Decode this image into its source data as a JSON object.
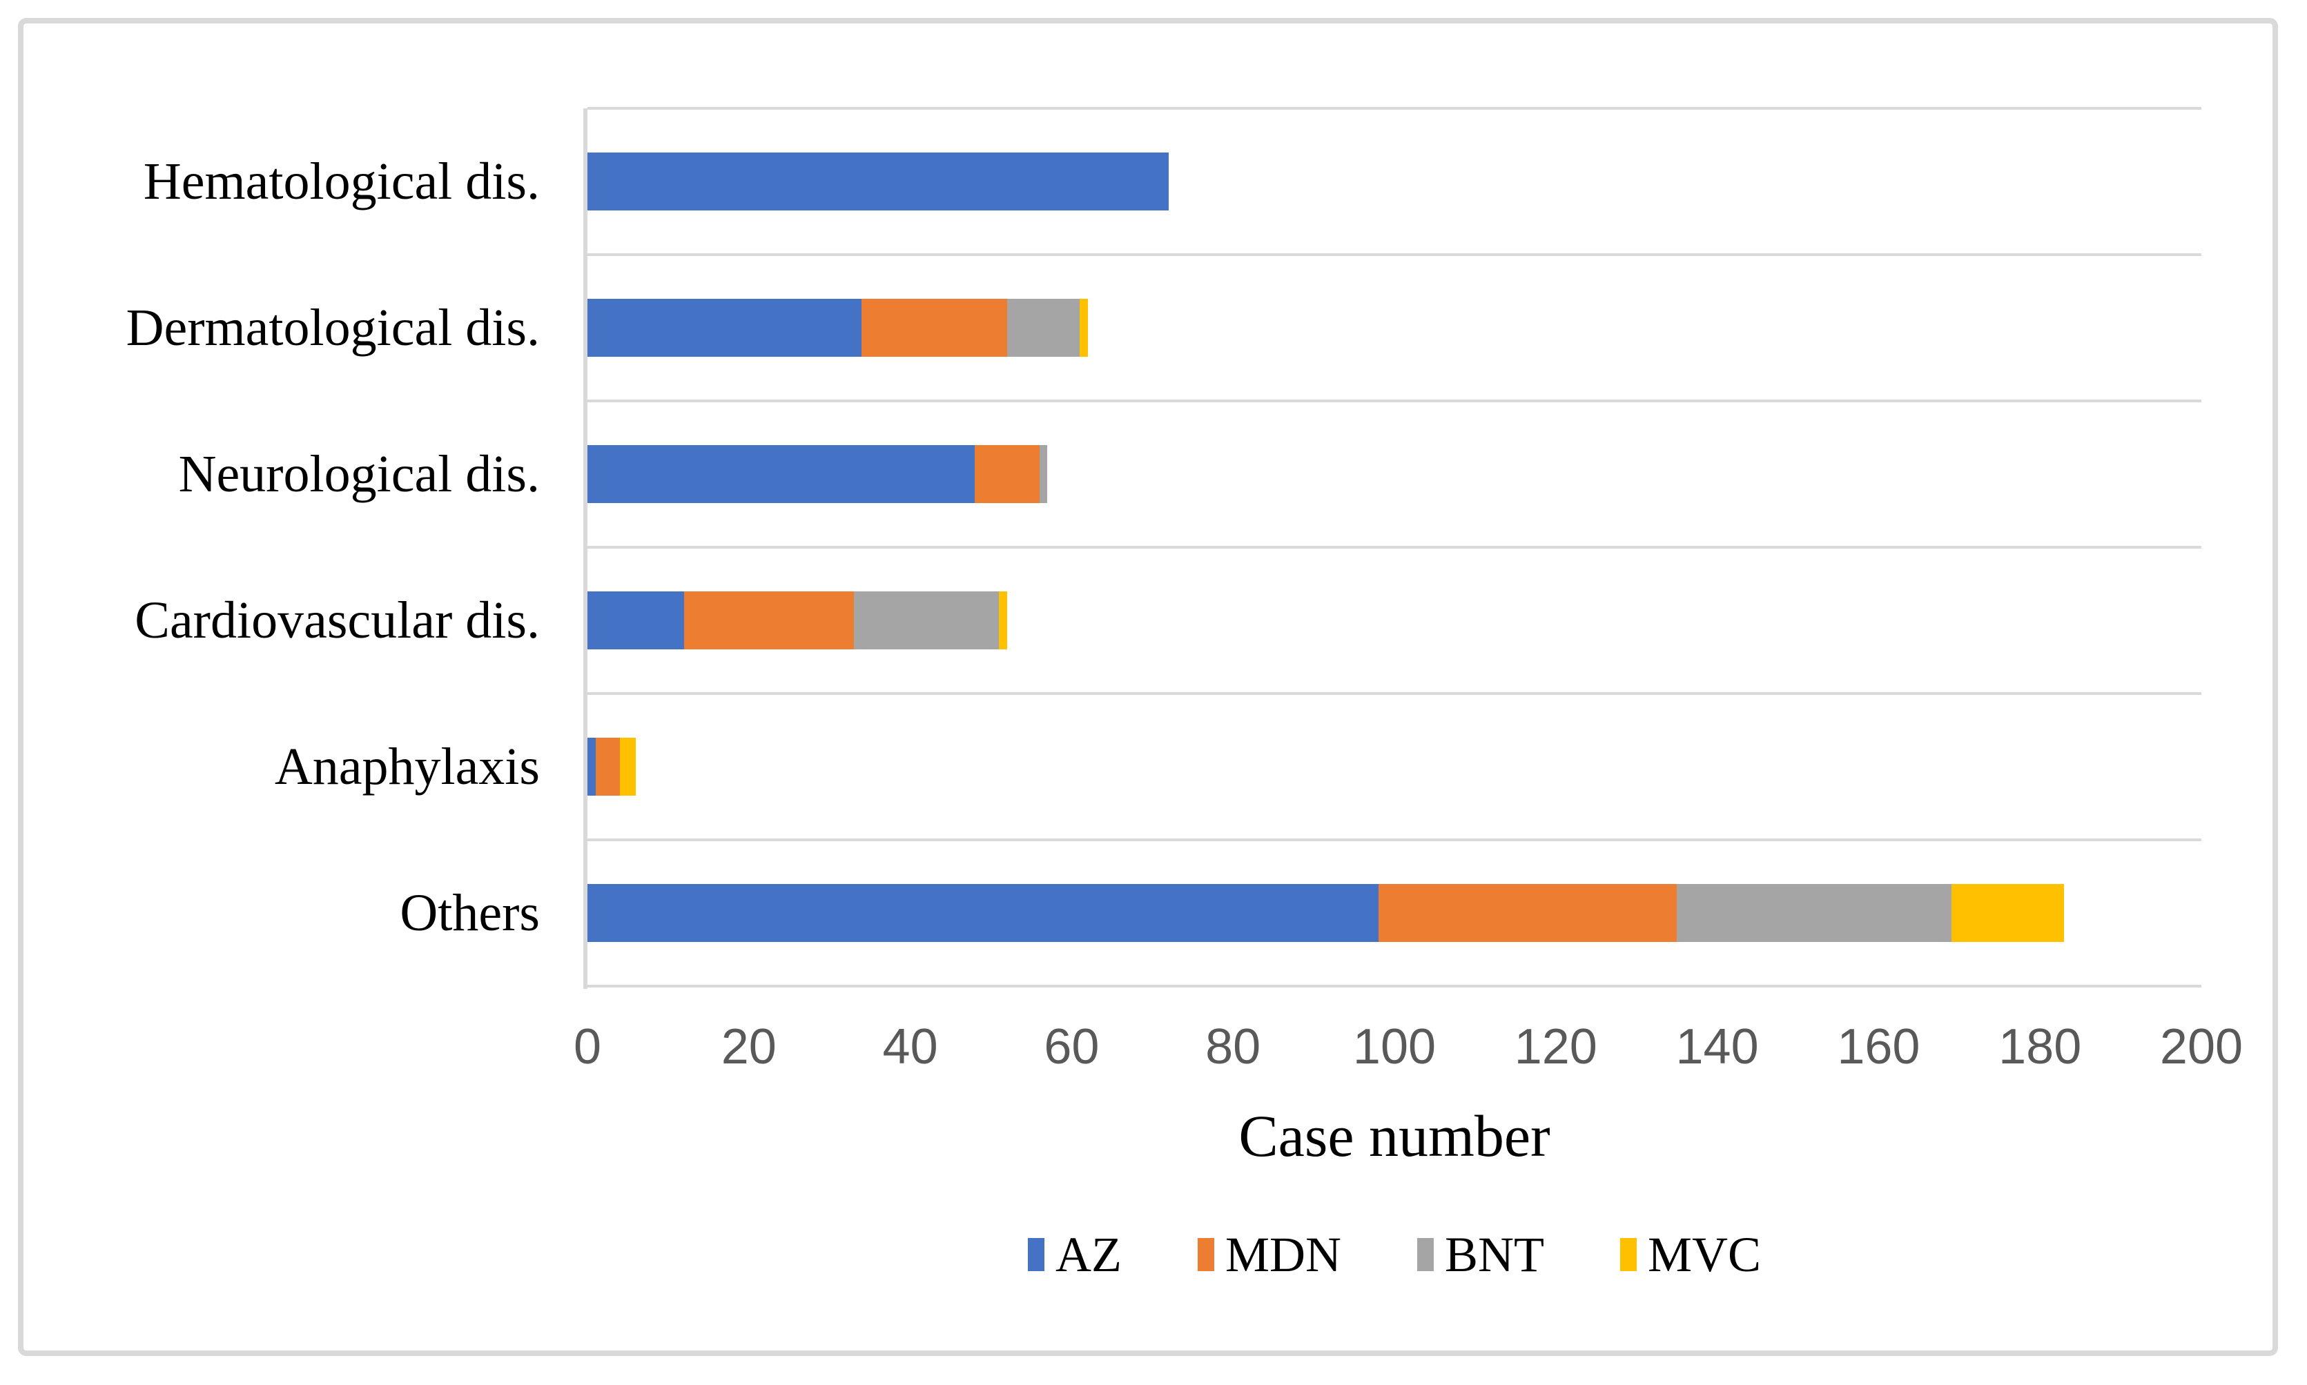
{
  "figure": {
    "background_color": "#ffffff",
    "border_color": "#d9d9d9"
  },
  "axis_style": {
    "grid_color": "#d9d9d9",
    "tick_label_color": "#595959",
    "text_color": "#000000"
  },
  "chart_data": {
    "type": "bar",
    "orientation": "horizontal",
    "stacked": true,
    "title": "",
    "xlabel": "Case number",
    "ylabel": "",
    "xlim": [
      0,
      200
    ],
    "x_ticks": [
      0,
      20,
      40,
      60,
      80,
      100,
      120,
      140,
      160,
      180,
      200
    ],
    "grid": "category-separators-only",
    "legend_position": "bottom",
    "categories": [
      "Hematological dis.",
      "Dermatological dis.",
      "Neurological dis.",
      "Cardiovascular dis.",
      "Anaphylaxis",
      "Others"
    ],
    "series": [
      {
        "name": "AZ",
        "color": "#4472c4",
        "values": [
          72,
          34,
          48,
          12,
          1,
          98
        ]
      },
      {
        "name": "MDN",
        "color": "#ed7d31",
        "values": [
          0,
          18,
          8,
          21,
          3,
          37
        ]
      },
      {
        "name": "BNT",
        "color": "#a5a5a5",
        "values": [
          0,
          9,
          1,
          18,
          0,
          34
        ]
      },
      {
        "name": "MVC",
        "color": "#ffc000",
        "values": [
          0,
          1,
          0,
          1,
          2,
          14
        ]
      }
    ],
    "totals": [
      72,
      62,
      57,
      52,
      6,
      183
    ]
  }
}
